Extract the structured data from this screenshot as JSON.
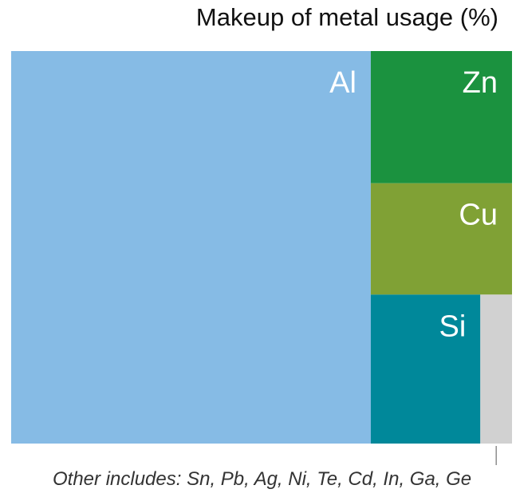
{
  "chart_data": {
    "type": "treemap",
    "title": "Makeup of metal usage (%)",
    "unit": "%",
    "tiles": [
      {
        "name": "Al",
        "value": 71.8,
        "color": "#86bbe5"
      },
      {
        "name": "Zn",
        "value": 9.5,
        "color": "#1b923f"
      },
      {
        "name": "Cu",
        "value": 8.0,
        "color": "#80a135"
      },
      {
        "name": "Si",
        "value": 8.3,
        "color": "#00889a"
      },
      {
        "name": "Other",
        "value": 2.4,
        "color": "#d1d1d1"
      }
    ],
    "note": "Other includes: Sn, Pb, Ag, Ni, Te, Cd, In, Ga, Ge"
  }
}
